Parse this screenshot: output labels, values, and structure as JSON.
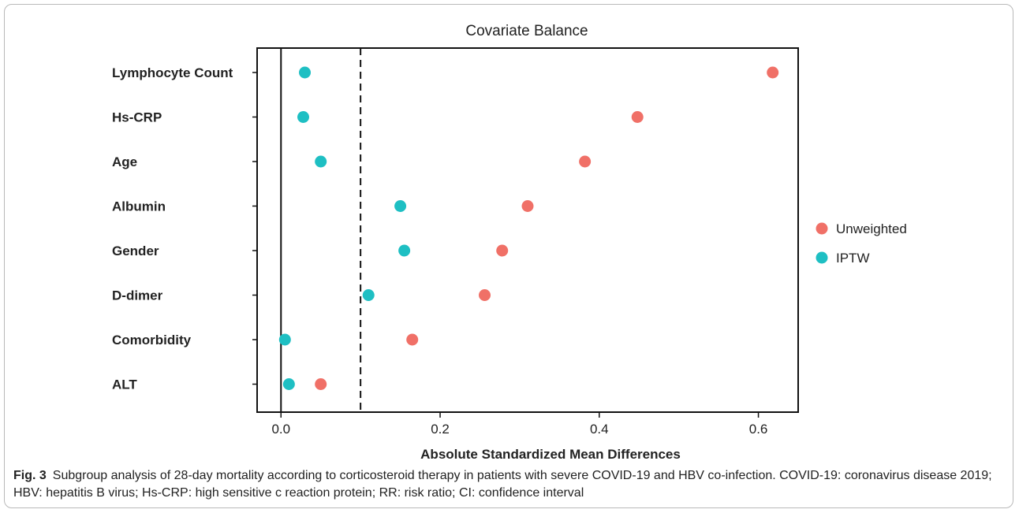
{
  "chart_data": {
    "type": "scatter",
    "title": "Covariate Balance",
    "xlabel": "Absolute Standardized Mean Differences",
    "ylabel": "",
    "xlim": [
      -0.03,
      0.65
    ],
    "xticks": [
      0.0,
      0.2,
      0.4,
      0.6
    ],
    "xtick_labels": [
      "0.0",
      "0.2",
      "0.4",
      "0.6"
    ],
    "threshold": 0.1,
    "zero_line": 0.0,
    "categories": [
      "Lymphocyte Count",
      "Hs-CRP",
      "Age",
      "Albumin",
      "Gender",
      "D-dimer",
      "Comorbidity",
      "ALT"
    ],
    "series": [
      {
        "name": "Unweighted",
        "color": "#f07067",
        "values": [
          0.618,
          0.448,
          0.382,
          0.31,
          0.278,
          0.256,
          0.165,
          0.05
        ]
      },
      {
        "name": "IPTW",
        "color": "#1ebfc3",
        "values": [
          0.03,
          0.028,
          0.05,
          0.15,
          0.155,
          0.11,
          0.005,
          0.01
        ]
      }
    ],
    "legend_position": "right",
    "grid": false
  },
  "caption": {
    "label": "Fig. 3",
    "text": "Subgroup analysis of 28-day mortality according to corticosteroid therapy in patients with severe COVID-19 and HBV co-infection. COVID-19: coronavirus disease 2019; HBV: hepatitis B virus; Hs-CRP: high sensitive c reaction protein; RR: risk ratio; CI: confidence interval"
  }
}
